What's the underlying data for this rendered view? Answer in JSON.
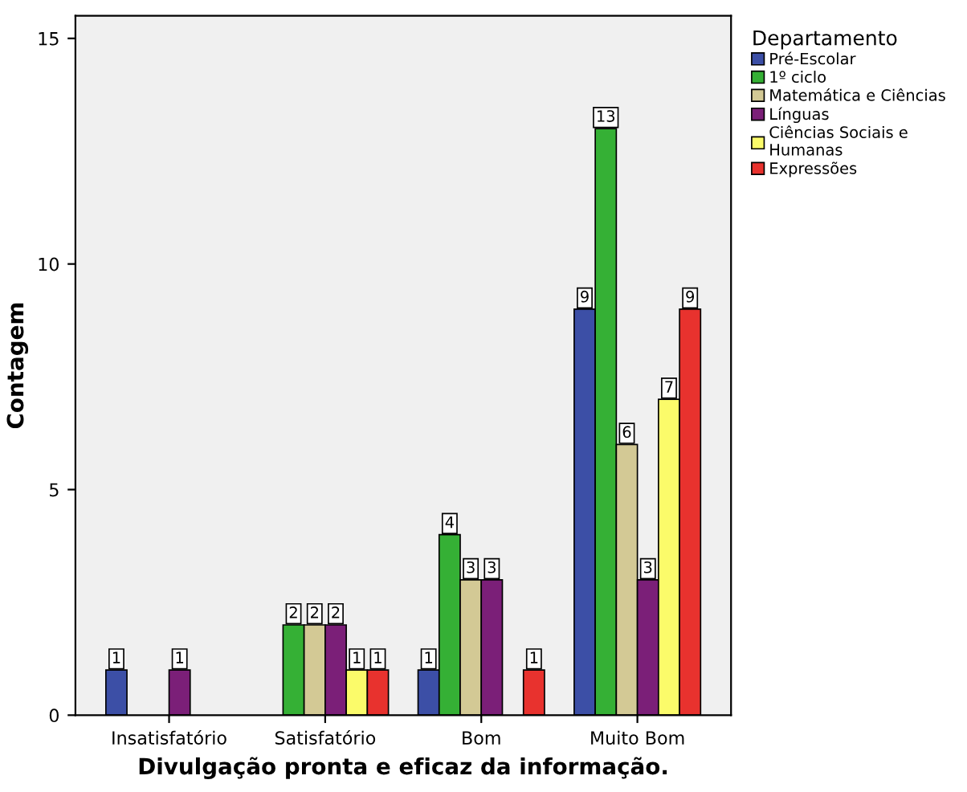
{
  "chart_data": {
    "type": "bar",
    "xlabel": "Divulgação pronta e eficaz da informação.",
    "ylabel": "Contagem",
    "legend_title": "Departamento",
    "categories": [
      "Insatisfatório",
      "Satisfatório",
      "Bom",
      "Muito Bom"
    ],
    "series": [
      {
        "name": "Pré-Escolar",
        "color": "#3c4fa6",
        "values": [
          1,
          null,
          1,
          9
        ]
      },
      {
        "name": "1º ciclo",
        "color": "#35b035",
        "values": [
          null,
          2,
          4,
          13
        ]
      },
      {
        "name": "Matemática e Ciências",
        "color": "#d3c995",
        "values": [
          null,
          2,
          3,
          6
        ]
      },
      {
        "name": "Línguas",
        "color": "#7b1f78",
        "values": [
          1,
          2,
          3,
          3
        ]
      },
      {
        "name": "Ciências Sociais e Humanas",
        "color": "#fbfb6a",
        "values": [
          null,
          1,
          null,
          7
        ]
      },
      {
        "name": "Expressões",
        "color": "#e8322e",
        "values": [
          null,
          1,
          1,
          9
        ]
      }
    ],
    "ylim": [
      0,
      15.5
    ],
    "yticks": [
      0,
      5,
      10,
      15
    ],
    "grid": false,
    "legend": "top right",
    "data_labels": true
  }
}
